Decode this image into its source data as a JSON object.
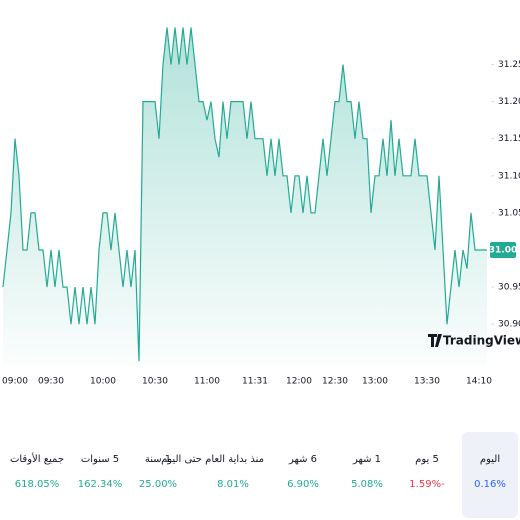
{
  "chart_data": {
    "type": "area",
    "categories": [
      null,
      null,
      null,
      "09:00",
      null,
      null,
      null,
      null,
      null,
      null,
      null,
      null,
      "09:30",
      null,
      null,
      null,
      null,
      null,
      null,
      null,
      null,
      null,
      null,
      null,
      null,
      "10:00",
      null,
      null,
      null,
      null,
      null,
      null,
      null,
      null,
      null,
      null,
      null,
      null,
      "10:30",
      null,
      null,
      null,
      null,
      null,
      null,
      null,
      null,
      null,
      null,
      null,
      null,
      "11:00",
      null,
      null,
      null,
      null,
      null,
      null,
      null,
      null,
      null,
      null,
      null,
      "11:31",
      null,
      null,
      null,
      null,
      null,
      null,
      null,
      null,
      null,
      null,
      "12:00",
      null,
      null,
      null,
      null,
      null,
      null,
      null,
      null,
      "12:30",
      null,
      null,
      null,
      null,
      null,
      null,
      null,
      null,
      null,
      "13:00",
      null,
      null,
      null,
      null,
      null,
      null,
      null,
      null,
      null,
      null,
      null,
      null,
      "13:30",
      null,
      null,
      null,
      null,
      null,
      null,
      null,
      null,
      null,
      null,
      null,
      null,
      "14:10",
      null,
      null
    ],
    "values": [
      30.95,
      31.0,
      31.05,
      31.15,
      31.1,
      31.0,
      31.0,
      31.05,
      31.05,
      31.0,
      31.0,
      30.95,
      31.0,
      30.95,
      31.0,
      30.95,
      30.95,
      30.9,
      30.95,
      30.9,
      30.95,
      30.9,
      30.95,
      30.9,
      31.0,
      31.05,
      31.05,
      31.0,
      31.05,
      31.0,
      30.95,
      31.0,
      30.95,
      31.0,
      30.85,
      31.2,
      31.2,
      31.2,
      31.2,
      31.15,
      31.25,
      31.3,
      31.25,
      31.3,
      31.25,
      31.3,
      31.25,
      31.3,
      31.25,
      31.2,
      31.2,
      31.175,
      31.2,
      31.15,
      31.125,
      31.2,
      31.15,
      31.2,
      31.2,
      31.2,
      31.2,
      31.15,
      31.2,
      31.15,
      31.15,
      31.15,
      31.1,
      31.15,
      31.1,
      31.15,
      31.1,
      31.1,
      31.05,
      31.1,
      31.1,
      31.05,
      31.1,
      31.05,
      31.05,
      31.1,
      31.15,
      31.1,
      31.15,
      31.2,
      31.2,
      31.25,
      31.2,
      31.2,
      31.15,
      31.2,
      31.15,
      31.15,
      31.05,
      31.1,
      31.1,
      31.15,
      31.1,
      31.175,
      31.1,
      31.15,
      31.1,
      31.1,
      31.1,
      31.15,
      31.1,
      31.1,
      31.1,
      31.05,
      31.0,
      31.1,
      31.0,
      30.9,
      30.95,
      31.0,
      30.95,
      31.0,
      30.975,
      31.05,
      31.0,
      31.0,
      31.0,
      31.0
    ],
    "last_label": "31.00",
    "color": "#22ab94",
    "ylim": [
      30.845,
      31.31
    ],
    "yticks": [
      31.25,
      {
        "value": 31.2,
        "label": "31.20"
      },
      31.15,
      {
        "value": 31.1,
        "label": "31.10"
      },
      31.05,
      30.95,
      {
        "value": 30.9,
        "label": "30.90"
      }
    ],
    "logo": "TradingView"
  },
  "periods": [
    {
      "label": "اليوم",
      "value": 0.16,
      "value_label": "0.16%"
    },
    {
      "label": "5 يوم",
      "value": -1.59,
      "value_label": "-1.59%"
    },
    {
      "label": "1 شهر",
      "value": 5.08,
      "value_label": "5.08%"
    },
    {
      "label": "6 شهر",
      "value": 6.9,
      "value_label": "6.90%"
    },
    {
      "label": "منذ بداية العام حتى اليوم",
      "value": 8.01,
      "value_label": "8.01%"
    },
    {
      "label": "1 سنة",
      "value": 25,
      "value_label": "25.00%"
    },
    {
      "label": "5 سنوات",
      "value": 162.34,
      "value_label": "162.34%"
    },
    {
      "label": "جميع الأوقات",
      "value": 618.05,
      "value_label": "618.05%"
    }
  ],
  "selected_period": 0
}
